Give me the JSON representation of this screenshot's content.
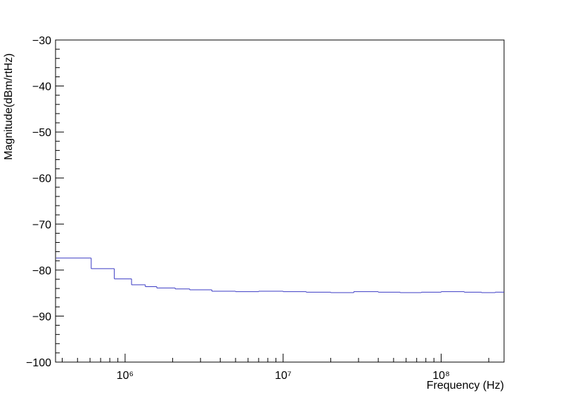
{
  "chart_data": {
    "type": "histogram",
    "xlabel": "Frequency (Hz)",
    "ylabel": "Magnitude(dBm/rtHz)",
    "xscale": "log",
    "color": "#3b3bc4",
    "bins": [
      366211,
      610352,
      854492,
      1098633,
      1342773,
      1586914,
      2075195,
      2563477,
      3540039,
      5000000,
      7000000,
      10000000,
      14000000,
      20000000,
      28000000,
      40000000,
      55000000,
      75000000,
      100000000,
      140000000,
      180000000,
      220000000,
      250000000
    ],
    "values": [
      -77.4,
      -79.7,
      -81.9,
      -83.2,
      -83.6,
      -83.9,
      -84.1,
      -84.3,
      -84.6,
      -84.7,
      -84.6,
      -84.7,
      -84.8,
      -84.9,
      -84.7,
      -84.8,
      -84.9,
      -84.8,
      -84.7,
      -84.8,
      -84.9,
      -84.8
    ],
    "xlim": [
      363000,
      250000000
    ],
    "ylim": [
      -100,
      -30
    ],
    "xticks": [
      {
        "value": 1000000,
        "label": "10⁶"
      },
      {
        "value": 10000000,
        "label": "10⁷"
      },
      {
        "value": 100000000,
        "label": "10⁸"
      }
    ],
    "xminorticks": [
      400000,
      500000,
      600000,
      700000,
      800000,
      900000,
      2000000,
      3000000,
      4000000,
      5000000,
      6000000,
      7000000,
      8000000,
      9000000,
      20000000,
      30000000,
      40000000,
      50000000,
      60000000,
      70000000,
      80000000,
      90000000,
      200000000
    ],
    "yticks": [
      {
        "value": -100,
        "label": "−100"
      },
      {
        "value": -90,
        "label": "−90"
      },
      {
        "value": -80,
        "label": "−80"
      },
      {
        "value": -70,
        "label": "−70"
      },
      {
        "value": -60,
        "label": "−60"
      },
      {
        "value": -50,
        "label": "−50"
      },
      {
        "value": -40,
        "label": "−40"
      },
      {
        "value": -30,
        "label": "−30"
      }
    ],
    "yminorticks": [
      -98,
      -96,
      -94,
      -92,
      -88,
      -86,
      -84,
      -82,
      -78,
      -76,
      -74,
      -72,
      -68,
      -66,
      -64,
      -62,
      -58,
      -56,
      -54,
      -52,
      -48,
      -46,
      -44,
      -42,
      -38,
      -36,
      -34,
      -32
    ]
  }
}
